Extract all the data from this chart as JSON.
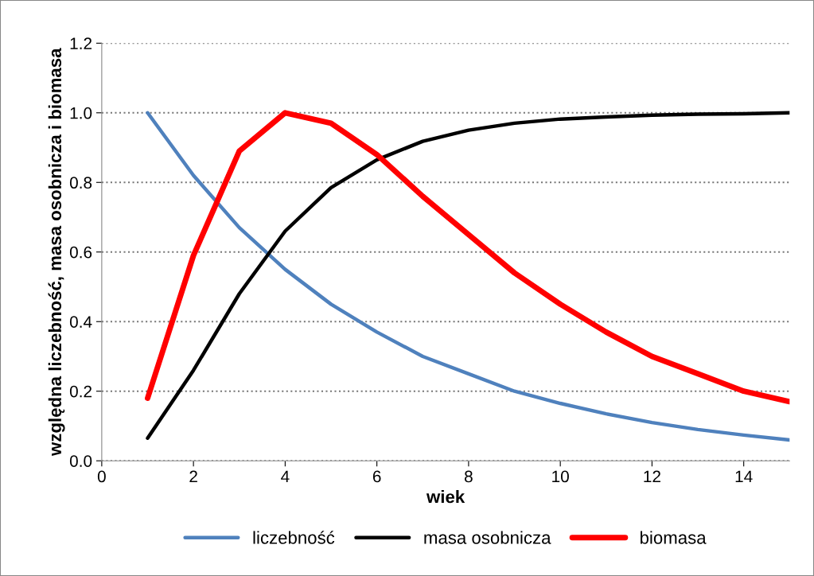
{
  "chart_data": {
    "type": "line",
    "xlabel": "wiek",
    "ylabel": "względna liczebność, masa osobnicza i biomasa",
    "x": [
      1,
      2,
      3,
      4,
      5,
      6,
      7,
      8,
      9,
      10,
      11,
      12,
      13,
      14,
      15
    ],
    "series": [
      {
        "name": "liczebność",
        "color": "#4f81bd",
        "values": [
          1.0,
          0.82,
          0.67,
          0.55,
          0.45,
          0.37,
          0.3,
          0.25,
          0.2,
          0.165,
          0.135,
          0.11,
          0.09,
          0.074,
          0.06
        ]
      },
      {
        "name": "masa osobnicza",
        "color": "#000000",
        "values": [
          0.065,
          0.26,
          0.48,
          0.66,
          0.785,
          0.865,
          0.918,
          0.95,
          0.97,
          0.982,
          0.988,
          0.993,
          0.996,
          0.997,
          1.0
        ]
      },
      {
        "name": "biomasa",
        "color": "#ff0000",
        "values": [
          0.18,
          0.59,
          0.89,
          1.0,
          0.97,
          0.88,
          0.76,
          0.65,
          0.54,
          0.45,
          0.37,
          0.3,
          0.25,
          0.2,
          0.17
        ]
      }
    ],
    "xlim": [
      0,
      15
    ],
    "xticks": [
      0,
      2,
      4,
      6,
      8,
      10,
      12,
      14
    ],
    "ylim": [
      0,
      1.2
    ],
    "yticks": [
      {
        "value": 0,
        "label": "0.0"
      },
      {
        "value": 0.2,
        "label": "0.2"
      },
      {
        "value": 0.4,
        "label": "0.4"
      },
      {
        "value": 0.6,
        "label": "0.6"
      },
      {
        "value": 0.8,
        "label": "0.8"
      },
      {
        "value": 1.0,
        "label": "1.0"
      },
      {
        "value": 1.2,
        "label": "1.2"
      }
    ],
    "grid": "y",
    "legend": "bottom",
    "marker": "none",
    "line_style": "solid"
  }
}
